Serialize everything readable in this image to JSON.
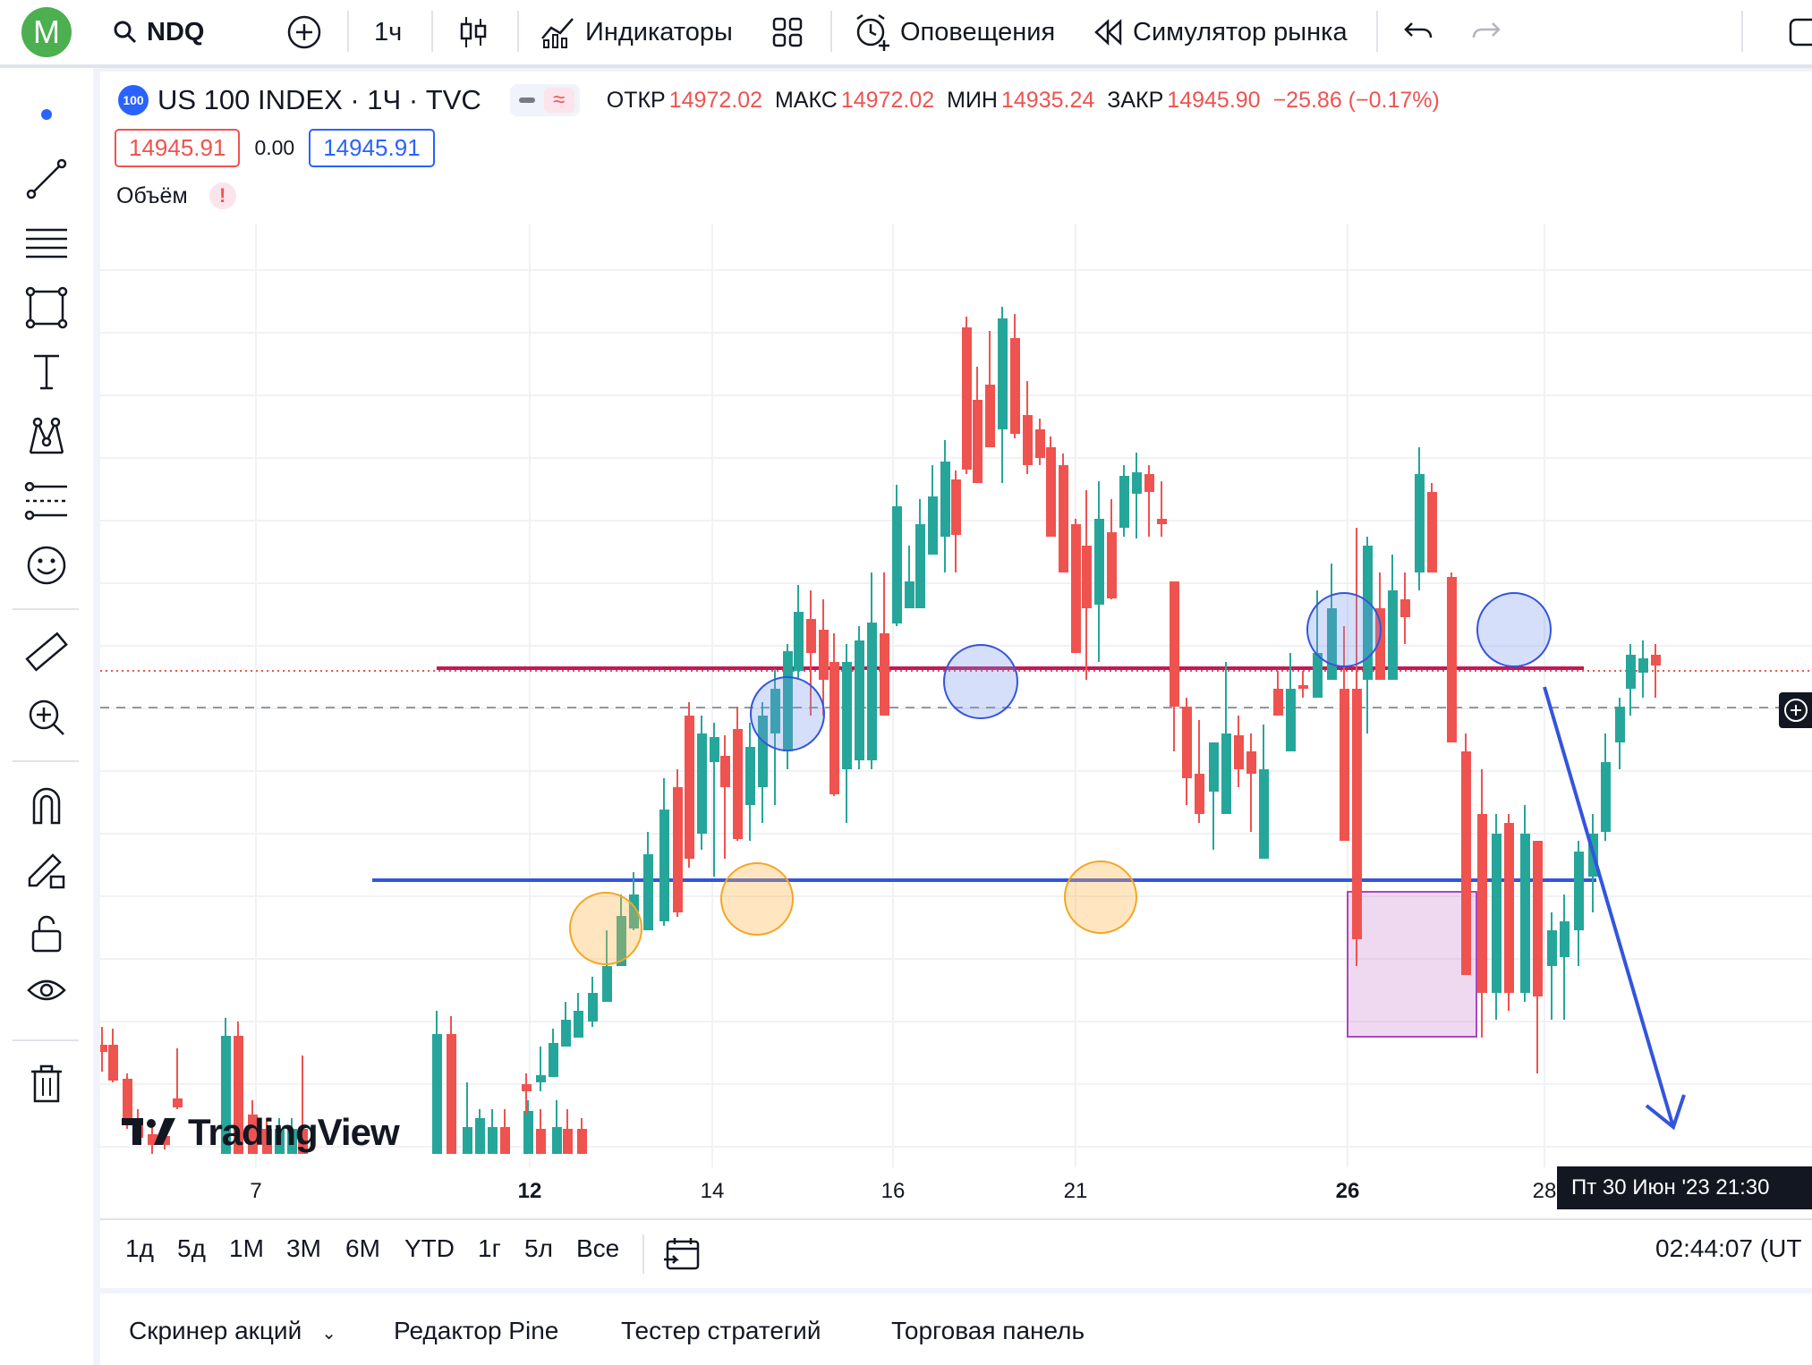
{
  "topbar": {
    "avatar_letter": "M",
    "symbol": "NDQ",
    "interval": "1ч",
    "indicators_label": "Индикаторы",
    "alerts_label": "Оповещения",
    "replay_label": "Симулятор рынка"
  },
  "legend": {
    "badge": "100",
    "title": "US 100 INDEX · 1Ч · TVC",
    "open_label": "ОТКР",
    "open_value": "14972.02",
    "high_label": "МАКС",
    "high_value": "14972.02",
    "low_label": "МИН",
    "low_value": "14935.24",
    "close_label": "ЗАКР",
    "close_value": "14945.90",
    "change": "−25.86 (−0.17%)",
    "bid": "14945.91",
    "spread": "0.00",
    "ask": "14945.91",
    "volume_label": "Объём",
    "volume_warning": "!"
  },
  "chart": {
    "x_ticks": [
      {
        "label": "7",
        "bold": false
      },
      {
        "label": "12",
        "bold": true
      },
      {
        "label": "14",
        "bold": false
      },
      {
        "label": "16",
        "bold": false
      },
      {
        "label": "21",
        "bold": false
      },
      {
        "label": "26",
        "bold": true
      },
      {
        "label": "28",
        "bold": false
      }
    ],
    "crosshair_time": "Пт 30 Июн '23   21:30",
    "watermark": "TradingView",
    "colors": {
      "up": "#26a69a",
      "down": "#ef5350",
      "resistance": "#c2185b",
      "support": "#3355dd",
      "arrow": "#3355dd"
    }
  },
  "ranges": [
    "1д",
    "5д",
    "1М",
    "3М",
    "6М",
    "YTD",
    "1г",
    "5л",
    "Все"
  ],
  "clock": "02:44:07 (UT",
  "bottom_tabs": {
    "screener": "Скринер акций",
    "pine": "Редактор Pine",
    "tester": "Тестер стратегий",
    "trading": "Торговая панель"
  }
}
